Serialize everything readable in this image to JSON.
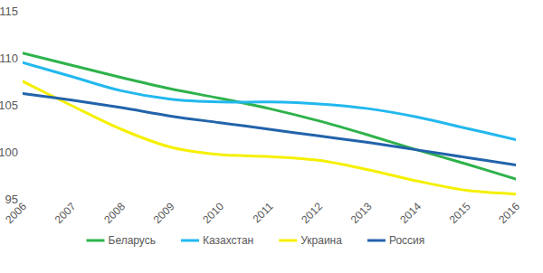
{
  "chart_data": {
    "type": "line",
    "categories": [
      "2006",
      "2007",
      "2008",
      "2009",
      "2010",
      "2011",
      "2012",
      "2013",
      "2014",
      "2015",
      "2016"
    ],
    "series": [
      {
        "name": "Беларусь",
        "color": "#2eb24b",
        "values": [
          110.6,
          109.3,
          108.0,
          106.8,
          105.8,
          104.7,
          103.4,
          101.9,
          100.3,
          98.8,
          97.2
        ]
      },
      {
        "name": "Казахстан",
        "color": "#22b8ee",
        "values": [
          109.6,
          108.1,
          106.6,
          105.7,
          105.4,
          105.4,
          105.2,
          104.7,
          103.8,
          102.6,
          101.4
        ]
      },
      {
        "name": "Украина",
        "color": "#f5f000",
        "values": [
          107.6,
          105.0,
          102.5,
          100.6,
          99.8,
          99.6,
          99.2,
          98.2,
          97.0,
          96.0,
          95.6
        ]
      },
      {
        "name": "Россия",
        "color": "#2263ab",
        "values": [
          106.3,
          105.6,
          104.8,
          103.9,
          103.2,
          102.5,
          101.8,
          101.1,
          100.3,
          99.5,
          98.7
        ]
      }
    ],
    "ylim": [
      95,
      115
    ],
    "yticks": [
      95,
      100,
      105,
      110,
      115
    ],
    "grid": false,
    "legend": "bottom",
    "line_style": "smooth"
  }
}
